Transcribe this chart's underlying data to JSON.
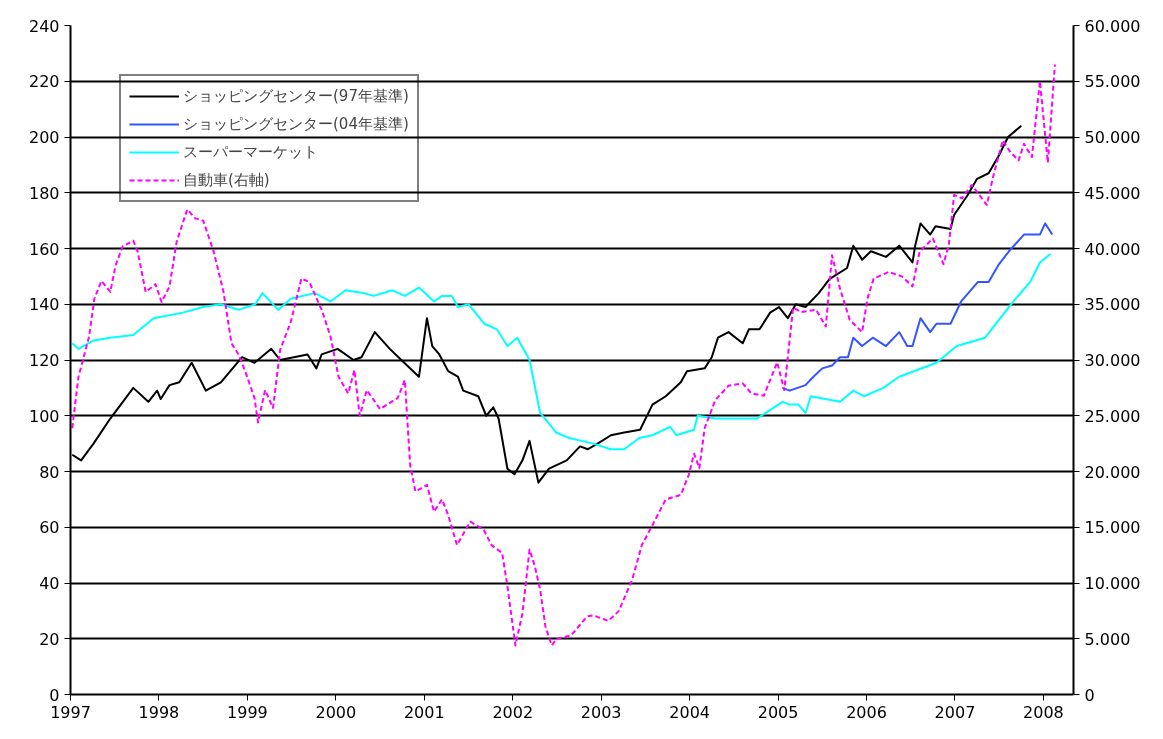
{
  "chart_data": {
    "type": "line",
    "xlim": [
      1997,
      2008.34
    ],
    "xticks": [
      1997,
      1998,
      1999,
      2000,
      2001,
      2002,
      2003,
      2004,
      2005,
      2006,
      2007,
      2008
    ],
    "ylim": [
      0,
      240
    ],
    "yticks": [
      0,
      20,
      40,
      60,
      80,
      100,
      120,
      140,
      160,
      180,
      200,
      220,
      240
    ],
    "y2lim": [
      0,
      60000
    ],
    "y2ticks": [
      0,
      {
        "value": 5000,
        "label": "5.000"
      },
      {
        "value": 10000,
        "label": "10.000"
      },
      {
        "value": 15000,
        "label": "15.000"
      },
      {
        "value": 20000,
        "label": "20.000"
      },
      {
        "value": 25000,
        "label": "25.000"
      },
      {
        "value": 30000,
        "label": "30.000"
      },
      {
        "value": 35000,
        "label": "35.000"
      },
      {
        "value": 40000,
        "label": "40.000"
      },
      {
        "value": 45000,
        "label": "45.000"
      },
      {
        "value": 50000,
        "label": "50.000"
      },
      {
        "value": 55000,
        "label": "55.000"
      },
      {
        "value": 60000,
        "label": "60.000"
      }
    ],
    "grid": "y",
    "legend": "top left",
    "series": [
      {
        "name": "ショッピングセンター(97年基準)",
        "color": "#000000",
        "line_style": "solid",
        "x": [
          1997.02,
          1997.12,
          1997.26,
          1997.45,
          1997.71,
          1997.88,
          1997.98,
          1998.02,
          1998.12,
          1998.23,
          1998.37,
          1998.53,
          1998.7,
          1998.94,
          1999.08,
          1999.27,
          1999.37,
          1999.68,
          1999.78,
          1999.84,
          2000.02,
          2000.2,
          2000.29,
          2000.44,
          2000.61,
          2000.74,
          2000.94,
          2001.03,
          2001.09,
          2001.17,
          2001.27,
          2001.38,
          2001.44,
          2001.61,
          2001.7,
          2001.78,
          2001.84,
          2001.94,
          2002.02,
          2002.11,
          2002.19,
          2002.29,
          2002.41,
          2002.61,
          2002.76,
          2002.85,
          2002.96,
          2003.11,
          2003.26,
          2003.44,
          2003.58,
          2003.73,
          2003.9,
          2003.97,
          2004.17,
          2004.25,
          2004.32,
          2004.44,
          2004.6,
          2004.67,
          2004.79,
          2004.91,
          2005.01,
          2005.11,
          2005.2,
          2005.31,
          2005.46,
          2005.58,
          2005.78,
          2005.85,
          2005.95,
          2006.05,
          2006.22,
          2006.37,
          2006.52,
          2006.55,
          2006.61,
          2006.72,
          2006.78,
          2006.95,
          2006.99,
          2007.14,
          2007.25,
          2007.38,
          2007.49,
          2007.6,
          2007.75
        ],
        "values": [
          86,
          84,
          90,
          99,
          110,
          105,
          109,
          106,
          111,
          112,
          119,
          109,
          112,
          121,
          119,
          124,
          120,
          122,
          117,
          122,
          124,
          120,
          121,
          130,
          124,
          120,
          114,
          135,
          125,
          122,
          116,
          114,
          109,
          107,
          100,
          103,
          99,
          81,
          79,
          84,
          91,
          76,
          81,
          84,
          89,
          88,
          90,
          93,
          94,
          95,
          104,
          107,
          112,
          116,
          117,
          121,
          128,
          130,
          126,
          131,
          131,
          137,
          139,
          135,
          140,
          139,
          144,
          149,
          153,
          161,
          156,
          159,
          157,
          161,
          155,
          161,
          169,
          165,
          168,
          167,
          172,
          179,
          185,
          187,
          193,
          200,
          204
        ]
      },
      {
        "name": "ショッピングセンター(04年基準)",
        "color": "#3355ff",
        "line_style": "solid",
        "x": [
          2005.05,
          2005.13,
          2005.31,
          2005.4,
          2005.5,
          2005.61,
          2005.7,
          2005.79,
          2005.85,
          2005.95,
          2006.07,
          2006.22,
          2006.37,
          2006.46,
          2006.52,
          2006.61,
          2006.72,
          2006.79,
          2006.95,
          2007.07,
          2007.26,
          2007.38,
          2007.49,
          2007.61,
          2007.78,
          2007.96,
          2008.02,
          2008.1
        ],
        "values": [
          110,
          109,
          111,
          114,
          117,
          118,
          121,
          121,
          128,
          125,
          128,
          125,
          130,
          125,
          125,
          135,
          130,
          133,
          133,
          141,
          148,
          148,
          154,
          159,
          165,
          165,
          169,
          165
        ]
      },
      {
        "name": "スーパーマーケット",
        "color": "#00ffff",
        "line_style": "solid",
        "x": [
          1997.02,
          1997.09,
          1997.26,
          1997.45,
          1997.71,
          1997.94,
          1998.27,
          1998.5,
          1998.7,
          1998.9,
          1999.09,
          1999.17,
          1999.35,
          1999.49,
          1999.76,
          1999.94,
          2000.11,
          2000.31,
          2000.43,
          2000.64,
          2000.78,
          2000.94,
          2001.11,
          2001.2,
          2001.31,
          2001.38,
          2001.5,
          2001.68,
          2001.82,
          2001.94,
          2002.05,
          2002.19,
          2002.31,
          2002.49,
          2002.64,
          2002.91,
          2003.11,
          2003.26,
          2003.43,
          2003.58,
          2003.78,
          2003.85,
          2004.05,
          2004.09,
          2004.29,
          2004.76,
          2005.05,
          2005.13,
          2005.23,
          2005.31,
          2005.37,
          2005.7,
          2005.85,
          2005.97,
          2006.19,
          2006.37,
          2006.79,
          2007.02,
          2007.34,
          2007.66,
          2007.85,
          2007.96,
          2008.08
        ],
        "values": [
          126,
          124,
          127,
          128,
          129,
          135,
          137,
          139,
          140,
          138,
          140,
          144,
          138,
          142,
          144,
          141,
          145,
          144,
          143,
          145,
          143,
          146,
          141,
          143,
          143,
          139,
          140,
          133,
          131,
          125,
          128,
          120,
          101,
          94,
          92,
          90,
          88,
          88,
          92,
          93,
          96,
          93,
          95,
          100,
          99,
          99,
          105,
          104,
          104,
          101,
          107,
          105,
          109,
          107,
          110,
          114,
          119,
          125,
          128,
          141,
          148,
          155,
          158
        ]
      },
      {
        "name": "自動車(右軸)",
        "color": "#ff00ff",
        "line_style": "dashed",
        "axis": "y2",
        "x": [
          1997.02,
          1997.09,
          1997.15,
          1997.21,
          1997.27,
          1997.35,
          1997.45,
          1997.51,
          1997.59,
          1997.71,
          1997.76,
          1997.85,
          1997.96,
          1998.03,
          1998.12,
          1998.2,
          1998.32,
          1998.41,
          1998.5,
          1998.62,
          1998.73,
          1998.82,
          1998.9,
          1998.97,
          1999.08,
          1999.12,
          1999.2,
          1999.29,
          1999.37,
          1999.49,
          1999.61,
          1999.7,
          1999.84,
          1999.94,
          2000.03,
          2000.14,
          2000.21,
          2000.27,
          2000.35,
          2000.5,
          2000.7,
          2000.78,
          2000.84,
          2000.9,
          2001.03,
          2001.11,
          2001.2,
          2001.27,
          2001.37,
          2001.52,
          2001.67,
          2001.76,
          2001.88,
          2001.94,
          2002.03,
          2002.11,
          2002.19,
          2002.25,
          2002.31,
          2002.37,
          2002.44,
          2002.5,
          2002.66,
          2002.84,
          2002.91,
          2003.08,
          2003.2,
          2003.35,
          2003.46,
          2003.58,
          2003.73,
          2003.9,
          2003.99,
          2004.05,
          2004.11,
          2004.17,
          2004.29,
          2004.44,
          2004.6,
          2004.7,
          2004.84,
          2004.99,
          2005.07,
          2005.17,
          2005.26,
          2005.43,
          2005.54,
          2005.61,
          2005.7,
          2005.81,
          2005.95,
          2006.01,
          2006.08,
          2006.25,
          2006.4,
          2006.52,
          2006.6,
          2006.75,
          2006.87,
          2006.93,
          2006.99,
          2007.08,
          2007.19,
          2007.36,
          2007.43,
          2007.54,
          2007.63,
          2007.72,
          2007.78,
          2007.87,
          2007.96,
          2008.05,
          2008.13
        ],
        "values": [
          23900,
          28500,
          30300,
          32100,
          35500,
          37100,
          36100,
          38500,
          40200,
          40700,
          39700,
          36100,
          36800,
          35200,
          36600,
          40600,
          43500,
          42700,
          42500,
          39700,
          36100,
          31500,
          30500,
          29100,
          26600,
          24400,
          27300,
          25700,
          30900,
          33400,
          37300,
          37000,
          34500,
          32100,
          28500,
          27000,
          29100,
          25000,
          27300,
          25600,
          26600,
          28200,
          20600,
          18200,
          18800,
          16400,
          17500,
          16100,
          13400,
          15500,
          14800,
          13400,
          12700,
          9700,
          4400,
          7300,
          13000,
          11500,
          9400,
          6100,
          4400,
          5000,
          5300,
          7000,
          7100,
          6600,
          7500,
          10300,
          13400,
          15200,
          17500,
          17900,
          19700,
          21600,
          20300,
          23900,
          26400,
          27700,
          27900,
          27000,
          26800,
          29800,
          27300,
          34700,
          34300,
          34500,
          33000,
          39400,
          36400,
          33600,
          32500,
          35500,
          37300,
          37900,
          37500,
          36600,
          39700,
          40900,
          38600,
          40300,
          44800,
          44500,
          45700,
          43900,
          46400,
          49700,
          48600,
          47900,
          49400,
          48200,
          55000,
          47700,
          56500
        ]
      }
    ]
  }
}
